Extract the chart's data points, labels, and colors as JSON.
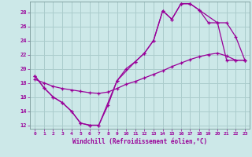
{
  "xlabel": "Windchill (Refroidissement éolien,°C)",
  "bg_color": "#cce8e8",
  "grid_color": "#aacccc",
  "line_color": "#990099",
  "xlim": [
    -0.5,
    23.5
  ],
  "ylim": [
    11.5,
    29.5
  ],
  "xticks": [
    0,
    1,
    2,
    3,
    4,
    5,
    6,
    7,
    8,
    9,
    10,
    11,
    12,
    13,
    14,
    15,
    16,
    17,
    18,
    19,
    20,
    21,
    22,
    23
  ],
  "yticks": [
    12,
    14,
    16,
    18,
    20,
    22,
    24,
    26,
    28
  ],
  "series1_x": [
    0,
    1,
    2,
    3,
    4,
    5,
    6,
    7,
    8,
    9,
    10,
    11,
    12,
    13,
    14,
    15,
    16,
    17,
    18,
    19,
    20,
    21,
    22,
    23
  ],
  "series1_y": [
    19.0,
    17.3,
    16.0,
    15.2,
    14.0,
    12.3,
    12.0,
    12.0,
    14.8,
    18.3,
    20.0,
    21.0,
    22.2,
    24.0,
    28.2,
    27.0,
    29.2,
    29.2,
    28.3,
    26.5,
    26.5,
    21.2,
    21.2,
    21.2
  ],
  "series2_x": [
    0,
    1,
    2,
    3,
    4,
    5,
    6,
    7,
    8,
    9,
    10,
    11,
    12,
    13,
    14,
    15,
    16,
    17,
    18,
    19,
    20,
    21,
    22,
    23
  ],
  "series2_y": [
    18.5,
    18.0,
    17.5,
    17.2,
    17.0,
    16.8,
    16.6,
    16.5,
    16.7,
    17.2,
    17.8,
    18.2,
    18.7,
    19.2,
    19.7,
    20.3,
    20.8,
    21.3,
    21.7,
    22.0,
    22.2,
    21.8,
    21.2,
    21.2
  ],
  "series3_x": [
    0,
    1,
    2,
    3,
    4,
    5,
    6,
    7,
    9,
    11,
    12,
    13,
    14,
    15,
    16,
    17,
    18,
    20,
    21,
    22,
    23
  ],
  "series3_y": [
    19.0,
    17.3,
    16.0,
    15.2,
    14.0,
    12.3,
    12.0,
    12.0,
    18.3,
    21.0,
    22.2,
    24.0,
    28.2,
    27.0,
    29.2,
    29.2,
    28.3,
    26.5,
    26.5,
    24.5,
    21.2
  ]
}
